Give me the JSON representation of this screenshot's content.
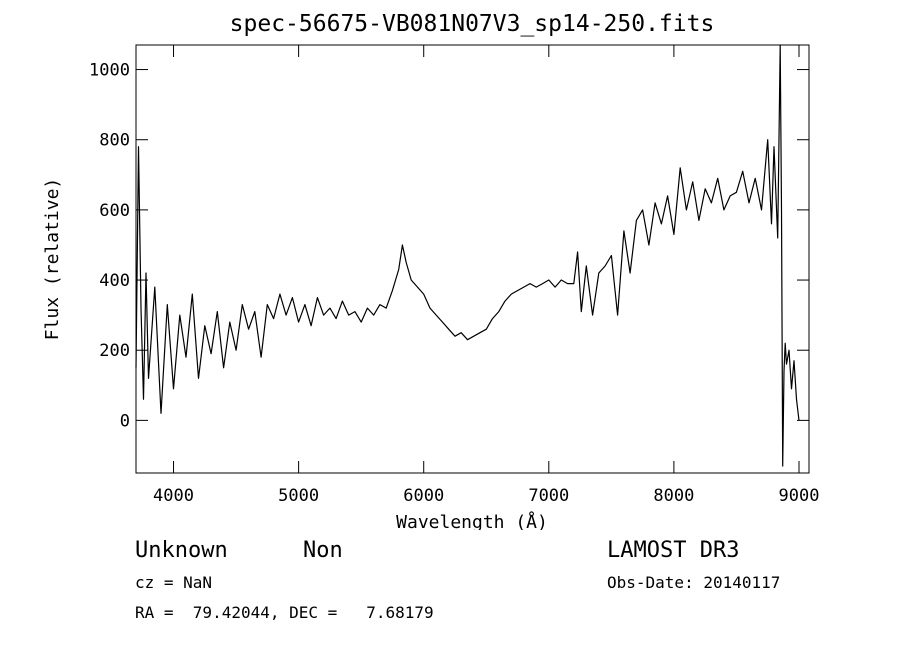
{
  "chart_data": {
    "type": "line",
    "title": "spec-56675-VB081N07V3_sp14-250.fits",
    "xlabel": "Wavelength (Å)",
    "ylabel": "Flux (relative)",
    "xlim": [
      3700,
      9080
    ],
    "ylim": [
      -150,
      1070
    ],
    "xticks": [
      4000,
      5000,
      6000,
      7000,
      8000,
      9000
    ],
    "yticks": [
      0,
      200,
      400,
      600,
      800,
      1000
    ],
    "series": [
      {
        "name": "flux",
        "x": [
          3700,
          3720,
          3740,
          3760,
          3780,
          3800,
          3850,
          3900,
          3950,
          4000,
          4050,
          4100,
          4150,
          4200,
          4250,
          4300,
          4350,
          4400,
          4450,
          4500,
          4550,
          4600,
          4650,
          4700,
          4750,
          4800,
          4850,
          4900,
          4950,
          5000,
          5050,
          5100,
          5150,
          5200,
          5250,
          5300,
          5350,
          5400,
          5450,
          5500,
          5550,
          5600,
          5650,
          5700,
          5750,
          5800,
          5830,
          5860,
          5900,
          5950,
          6000,
          6050,
          6100,
          6150,
          6200,
          6250,
          6300,
          6350,
          6400,
          6450,
          6500,
          6550,
          6600,
          6650,
          6700,
          6750,
          6800,
          6850,
          6900,
          6950,
          7000,
          7050,
          7100,
          7150,
          7200,
          7230,
          7260,
          7300,
          7350,
          7400,
          7450,
          7500,
          7550,
          7600,
          7650,
          7700,
          7750,
          7800,
          7850,
          7900,
          7950,
          8000,
          8050,
          8100,
          8150,
          8200,
          8250,
          8300,
          8350,
          8400,
          8450,
          8500,
          8550,
          8600,
          8650,
          8700,
          8750,
          8780,
          8800,
          8830,
          8850,
          8860,
          8870,
          8880,
          8890,
          8900,
          8920,
          8940,
          8960,
          8980,
          9000
        ],
        "y": [
          150,
          780,
          320,
          60,
          420,
          120,
          380,
          20,
          330,
          90,
          300,
          180,
          360,
          120,
          270,
          190,
          310,
          150,
          280,
          200,
          330,
          260,
          310,
          180,
          330,
          290,
          360,
          300,
          350,
          280,
          330,
          270,
          350,
          300,
          320,
          290,
          340,
          300,
          310,
          280,
          320,
          300,
          330,
          320,
          370,
          430,
          500,
          450,
          400,
          380,
          360,
          320,
          300,
          280,
          260,
          240,
          250,
          230,
          240,
          250,
          260,
          290,
          310,
          340,
          360,
          370,
          380,
          390,
          380,
          390,
          400,
          380,
          400,
          390,
          390,
          480,
          310,
          440,
          300,
          420,
          440,
          470,
          300,
          540,
          420,
          570,
          600,
          500,
          620,
          560,
          640,
          530,
          720,
          600,
          680,
          570,
          660,
          620,
          690,
          600,
          640,
          650,
          710,
          620,
          690,
          600,
          800,
          560,
          780,
          520,
          1070,
          600,
          -130,
          140,
          220,
          160,
          200,
          90,
          170,
          60,
          0
        ]
      }
    ]
  },
  "annotations": {
    "object_class": "Unknown",
    "subclass": "Non",
    "survey": "LAMOST DR3",
    "redshift": "cz = NaN",
    "obs_date": "Obs-Date: 20140117",
    "coordinates": "RA =  79.42044, DEC =   7.68179"
  }
}
